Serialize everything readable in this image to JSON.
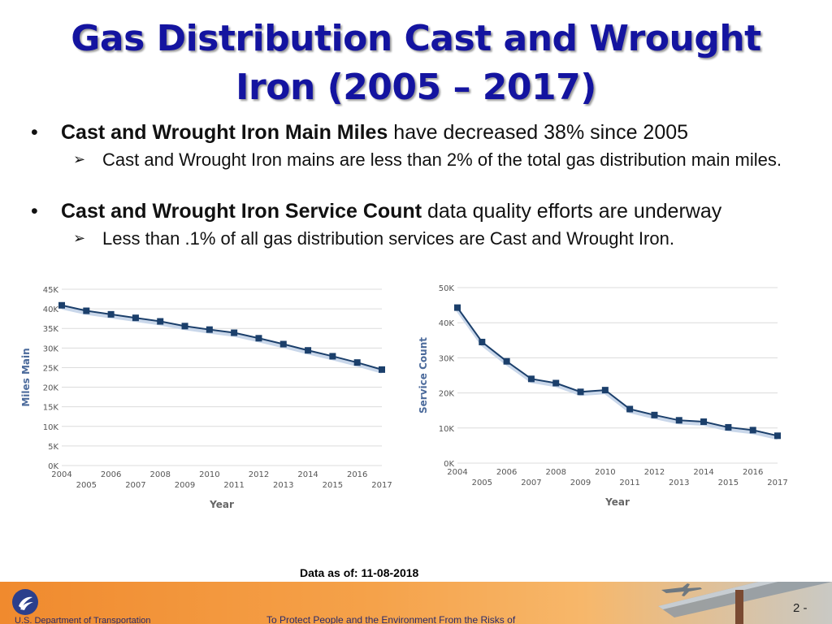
{
  "title": {
    "line1": "Gas Distribution Cast and Wrought",
    "line2": "Iron (2005 – 2017)"
  },
  "bullets": [
    {
      "bold": "Cast and Wrought Iron Main Miles",
      "rest": " have decreased 38% since 2005",
      "sub": "Cast and Wrought Iron mains are less than 2% of the total gas distribution main miles."
    },
    {
      "bold": "Cast and Wrought Iron Service Count",
      "rest": " data quality efforts are underway",
      "sub": "Less than .1% of all gas distribution services are Cast and Wrought Iron."
    }
  ],
  "bullet_symbol": "•",
  "sub_symbol": "➢",
  "chart_data": [
    {
      "type": "line",
      "title": "",
      "xlabel": "Year",
      "ylabel": "Miles Main",
      "x": [
        2004,
        2005,
        2006,
        2007,
        2008,
        2009,
        2010,
        2011,
        2012,
        2013,
        2014,
        2015,
        2016,
        2017
      ],
      "values": [
        40900,
        39500,
        38600,
        37700,
        36800,
        35600,
        34700,
        33900,
        32500,
        31000,
        29400,
        27900,
        26300,
        24500
      ],
      "ylim": [
        0,
        45000
      ],
      "yticks": [
        0,
        5000,
        10000,
        15000,
        20000,
        25000,
        30000,
        35000,
        40000,
        45000
      ],
      "yticklabels": [
        "0K",
        "5K",
        "10K",
        "15K",
        "20K",
        "25K",
        "30K",
        "35K",
        "40K",
        "45K"
      ],
      "grid": true,
      "color": "#1b3f6b"
    },
    {
      "type": "line",
      "title": "",
      "xlabel": "Year",
      "ylabel": "Service Count",
      "x": [
        2004,
        2005,
        2006,
        2007,
        2008,
        2009,
        2010,
        2011,
        2012,
        2013,
        2014,
        2015,
        2016,
        2017
      ],
      "values": [
        44300,
        34500,
        29000,
        24000,
        22800,
        20300,
        20800,
        15400,
        13700,
        12200,
        11800,
        10200,
        9400,
        7800
      ],
      "ylim": [
        0,
        50000
      ],
      "yticks": [
        0,
        10000,
        20000,
        30000,
        40000,
        50000
      ],
      "yticklabels": [
        "0K",
        "10K",
        "20K",
        "30K",
        "40K",
        "50K"
      ],
      "grid": true,
      "color": "#1b3f6b"
    }
  ],
  "data_as_of": "Data as of: 11-08-2018",
  "footer": {
    "department": "U.S. Department of Transportation",
    "tagline": "To Protect People and the Environment From the Risks of",
    "page_number": "2 -"
  }
}
